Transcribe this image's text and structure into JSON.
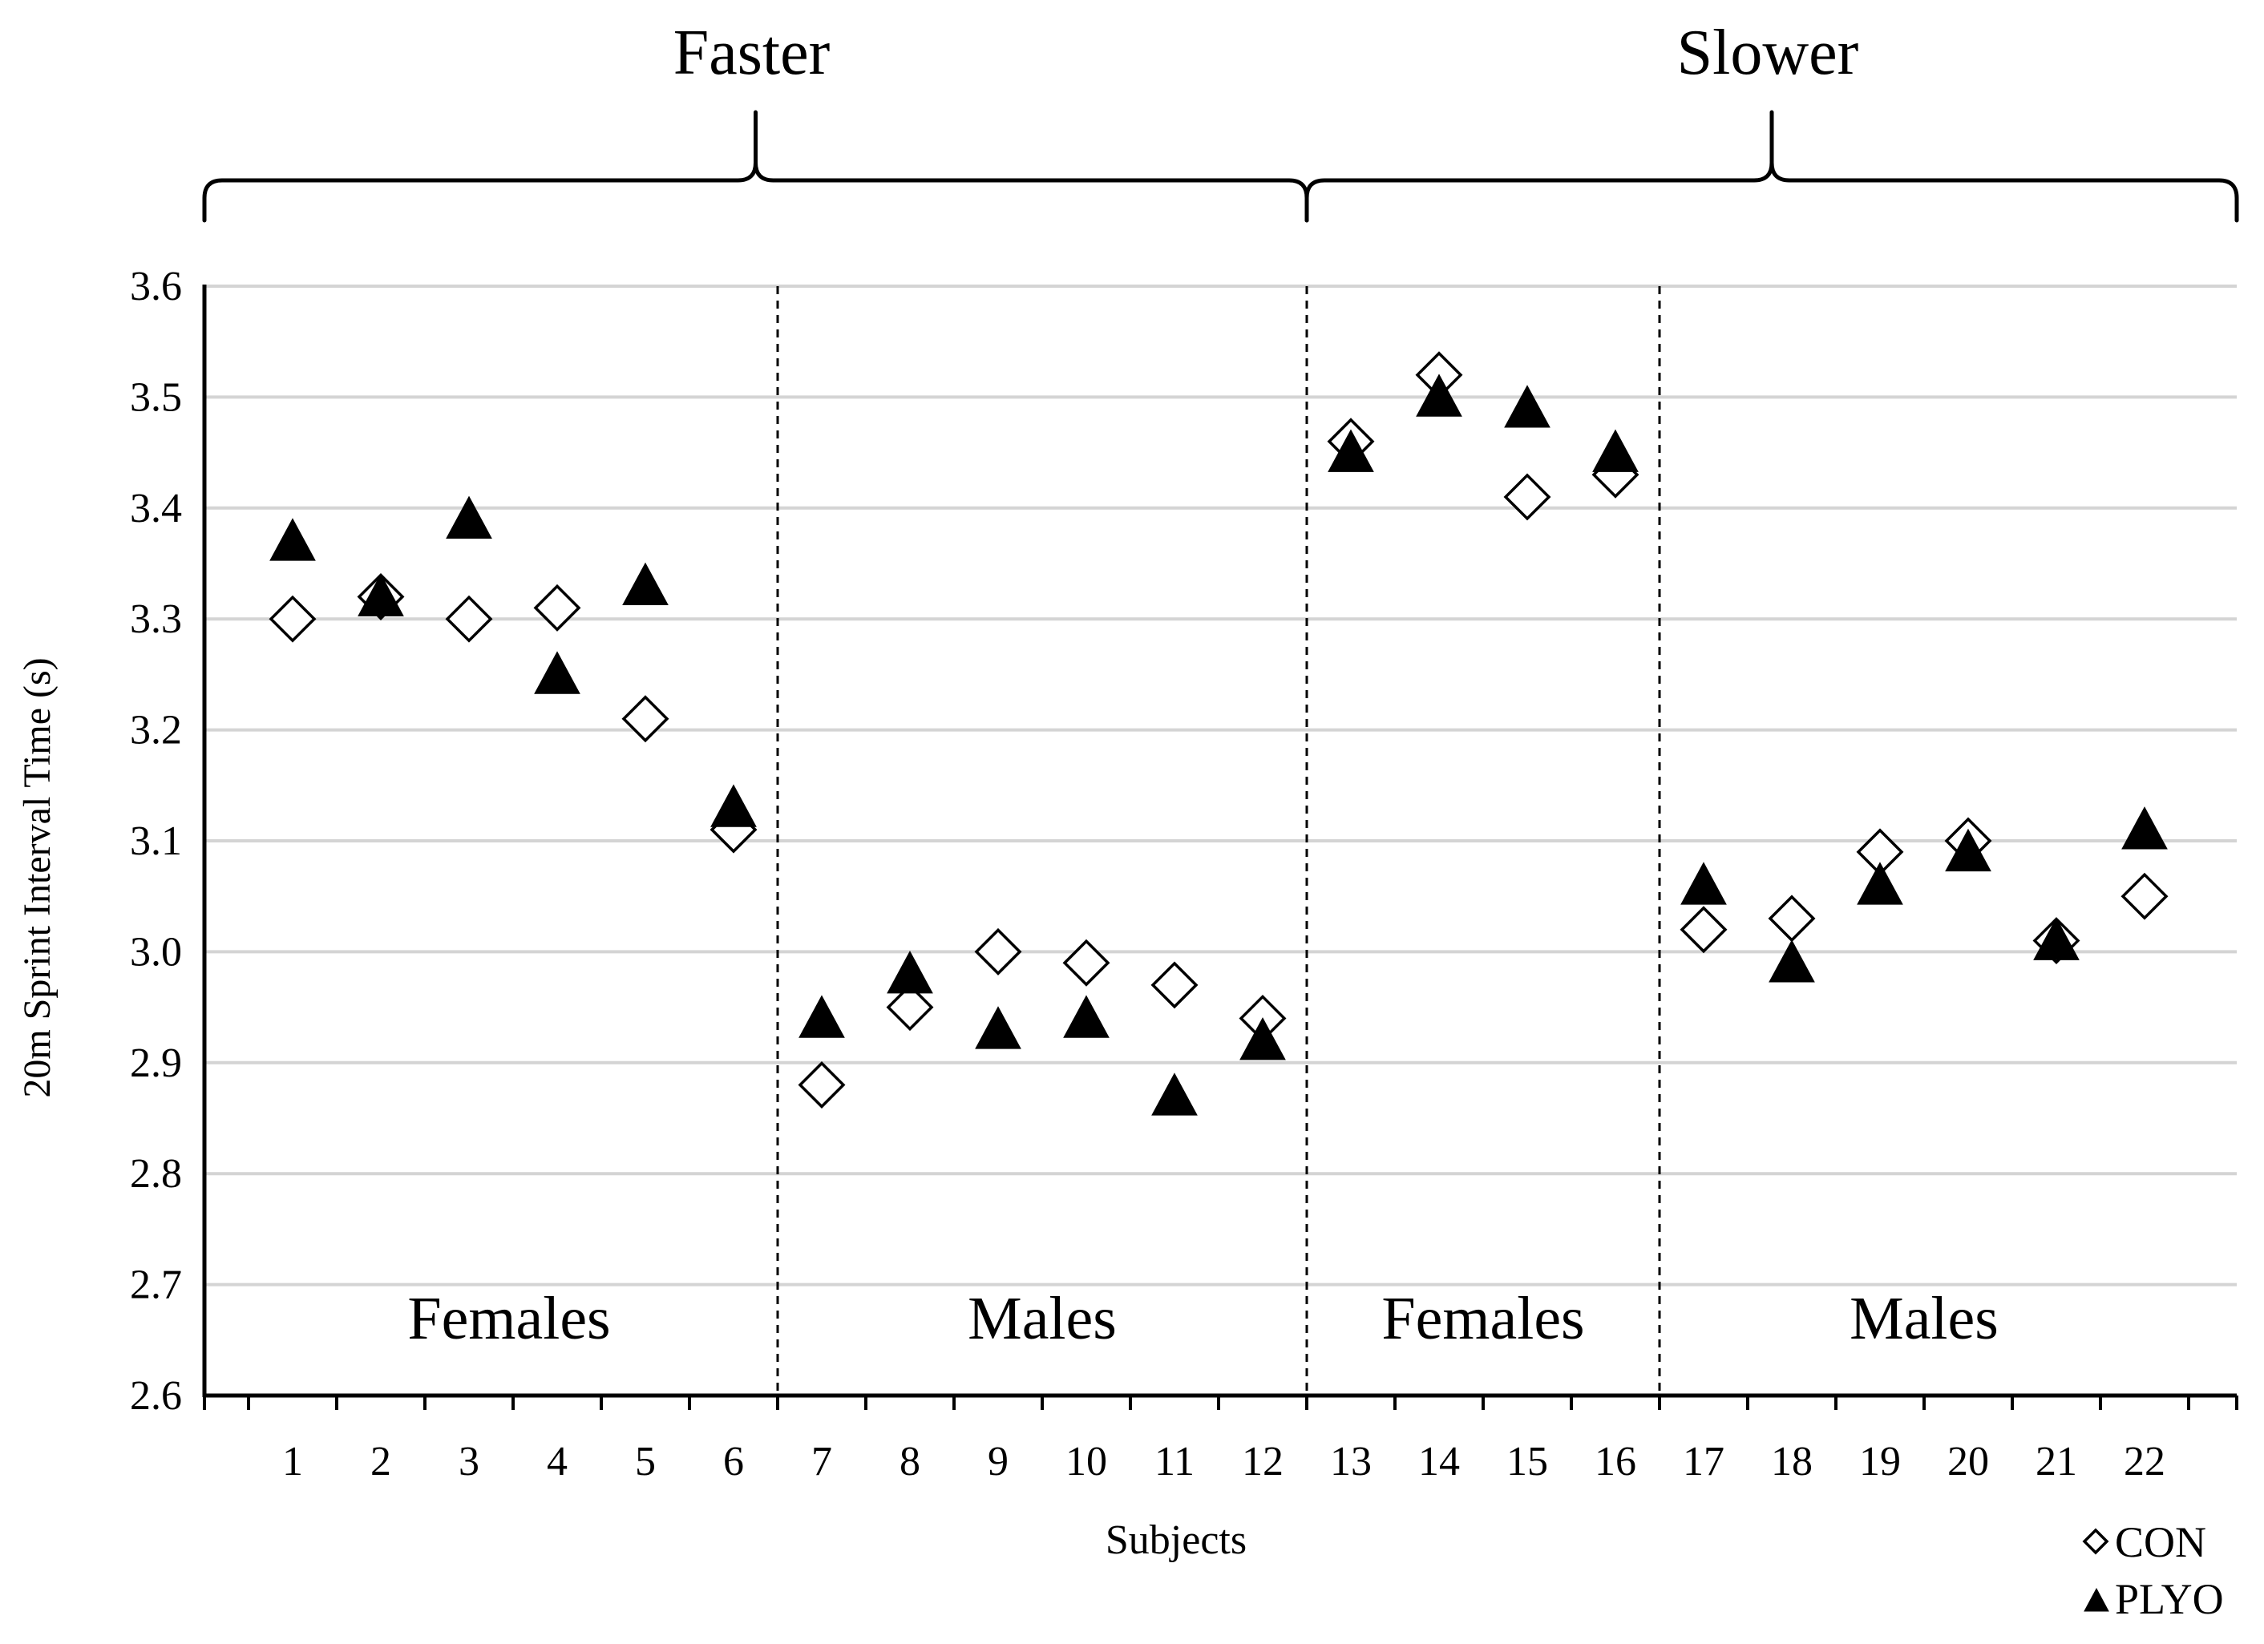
{
  "chart_data": {
    "type": "scatter",
    "title": "",
    "xlabel": "Subjects",
    "ylabel": "20m Sprint Interval Time (s)",
    "ylim": [
      2.6,
      3.6
    ],
    "yticks": [
      "2.6",
      "2.7",
      "2.8",
      "2.9",
      "3.0",
      "3.1",
      "3.2",
      "3.3",
      "3.4",
      "3.5",
      "3.6"
    ],
    "x": [
      1,
      2,
      3,
      4,
      5,
      6,
      7,
      8,
      9,
      10,
      11,
      12,
      13,
      14,
      15,
      16,
      17,
      18,
      19,
      20,
      21,
      22
    ],
    "grid": true,
    "legend_position": "bottom-right",
    "series": [
      {
        "name": "CON",
        "marker": "open-diamond",
        "values": [
          3.3,
          3.32,
          3.3,
          3.31,
          3.21,
          3.11,
          2.88,
          2.95,
          3.0,
          2.99,
          2.97,
          2.94,
          3.46,
          3.52,
          3.41,
          3.43,
          3.02,
          3.03,
          3.09,
          3.1,
          3.01,
          3.05
        ]
      },
      {
        "name": "PLYO",
        "marker": "filled-triangle",
        "values": [
          3.37,
          3.32,
          3.39,
          3.25,
          3.33,
          3.13,
          2.94,
          2.98,
          2.93,
          2.94,
          2.87,
          2.92,
          3.45,
          3.5,
          3.49,
          3.45,
          3.06,
          2.99,
          3.06,
          3.09,
          3.01,
          3.11
        ]
      }
    ],
    "group_brackets": [
      {
        "label": "Faster",
        "from_subject": 1,
        "to_subject": 12
      },
      {
        "label": "Slower",
        "from_subject": 13,
        "to_subject": 22
      }
    ],
    "regions": [
      {
        "label": "Females",
        "from_subject": 1,
        "to_subject": 6
      },
      {
        "label": "Males",
        "from_subject": 7,
        "to_subject": 12
      },
      {
        "label": "Females",
        "from_subject": 13,
        "to_subject": 16
      },
      {
        "label": "Males",
        "from_subject": 17,
        "to_subject": 22
      }
    ]
  }
}
